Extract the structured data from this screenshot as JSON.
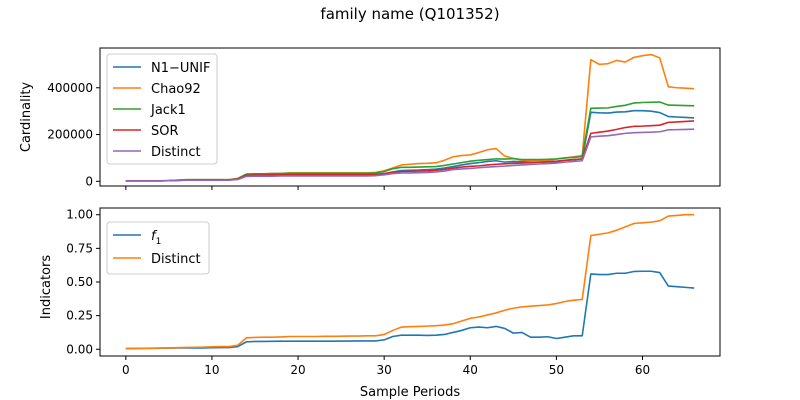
{
  "chart_data": {
    "title": "family name (Q101352)",
    "xlabel": "Sample Periods",
    "xlim": [
      -3,
      69
    ],
    "xticks": [
      0,
      10,
      20,
      30,
      40,
      50,
      60
    ],
    "subplots": [
      {
        "type": "line",
        "ylabel": "Cardinality",
        "ylim": [
          -20000,
          570000
        ],
        "yticks": [
          0,
          200000,
          400000
        ],
        "ytick_labels": [
          "0",
          "200000",
          "400000"
        ],
        "legend_placement": "upper left",
        "grid": false,
        "x": [
          0,
          1,
          2,
          3,
          4,
          5,
          6,
          7,
          8,
          9,
          10,
          11,
          12,
          13,
          14,
          15,
          16,
          17,
          18,
          19,
          20,
          21,
          22,
          23,
          24,
          25,
          26,
          27,
          28,
          29,
          30,
          31,
          32,
          33,
          34,
          35,
          36,
          37,
          38,
          39,
          40,
          41,
          42,
          43,
          44,
          45,
          46,
          47,
          48,
          49,
          50,
          51,
          52,
          53,
          54,
          55,
          56,
          57,
          58,
          59,
          60,
          61,
          62,
          63,
          64,
          65,
          66
        ],
        "series": [
          {
            "name": "N1−UNIF",
            "color": "#1f77b4",
            "values": [
              2000,
              2000,
              2000,
              2000,
              2000,
              3000,
              4000,
              6000,
              6000,
              6000,
              6000,
              6000,
              6000,
              10000,
              24000,
              25000,
              25000,
              26000,
              27000,
              28000,
              28000,
              28000,
              28000,
              28000,
              28000,
              28000,
              28000,
              28000,
              28000,
              29000,
              33000,
              40000,
              46000,
              47000,
              48000,
              50000,
              52000,
              57000,
              63000,
              70000,
              76000,
              80000,
              85000,
              88000,
              82000,
              85000,
              84000,
              82000,
              82000,
              83000,
              84000,
              90000,
              92000,
              96000,
              295000,
              293000,
              292000,
              296000,
              297000,
              302000,
              302000,
              300000,
              294000,
              277000,
              275000,
              273000,
              271000
            ]
          },
          {
            "name": "Chao92",
            "color": "#ff7f0e",
            "values": [
              2000,
              2000,
              2000,
              2000,
              2000,
              3000,
              5000,
              7000,
              7000,
              7000,
              7000,
              7000,
              7000,
              12000,
              30000,
              31000,
              32000,
              33000,
              34000,
              36000,
              36000,
              36000,
              36000,
              36000,
              36000,
              36000,
              36000,
              36000,
              36000,
              38000,
              45000,
              57000,
              70000,
              73000,
              76000,
              77000,
              79000,
              90000,
              105000,
              110000,
              113000,
              123000,
              135000,
              140000,
              108000,
              98000,
              90000,
              90000,
              90000,
              90000,
              95000,
              100000,
              105000,
              110000,
              520000,
              500000,
              503000,
              517000,
              510000,
              530000,
              537000,
              542000,
              528000,
              404000,
              400000,
              398000,
              396000
            ]
          },
          {
            "name": "Jack1",
            "color": "#2ca02c",
            "values": [
              2000,
              2000,
              2000,
              2000,
              2000,
              3000,
              5000,
              7000,
              7000,
              7000,
              7000,
              7000,
              7000,
              12000,
              31000,
              32000,
              32000,
              33000,
              34000,
              35000,
              35000,
              35000,
              35000,
              35000,
              35000,
              35000,
              35000,
              35000,
              35000,
              36000,
              42000,
              54000,
              60000,
              60000,
              61000,
              62000,
              63000,
              68000,
              74000,
              80000,
              86000,
              90000,
              93000,
              96000,
              95000,
              97000,
              93000,
              93000,
              93000,
              94000,
              96000,
              100000,
              102000,
              106000,
              312000,
              313000,
              314000,
              320000,
              325000,
              335000,
              337000,
              338000,
              339000,
              326000,
              325000,
              324000,
              323000
            ]
          },
          {
            "name": "SOR",
            "color": "#d62728",
            "values": [
              2000,
              2000,
              2000,
              2000,
              2000,
              3000,
              4000,
              6000,
              6000,
              6000,
              6000,
              6000,
              6000,
              10000,
              26000,
              27000,
              27000,
              28000,
              28000,
              29000,
              29000,
              29000,
              29000,
              29000,
              29000,
              29000,
              29000,
              29000,
              29000,
              30000,
              33000,
              38000,
              42000,
              43000,
              44000,
              45000,
              47000,
              51000,
              56000,
              61000,
              64000,
              66000,
              70000,
              73000,
              75000,
              77000,
              78000,
              80000,
              82000,
              84000,
              86000,
              90000,
              93000,
              96000,
              205000,
              210000,
              215000,
              222000,
              230000,
              235000,
              236000,
              238000,
              240000,
              252000,
              254000,
              256000,
              258000
            ]
          },
          {
            "name": "Distinct",
            "color": "#9467bd",
            "values": [
              1500,
              1500,
              1500,
              1500,
              1500,
              2500,
              3500,
              5000,
              5000,
              5000,
              5000,
              5000,
              5000,
              8000,
              21000,
              22000,
              22000,
              22000,
              23000,
              23000,
              23000,
              23000,
              23000,
              23000,
              23000,
              23000,
              23000,
              23000,
              23000,
              24000,
              28000,
              33000,
              36000,
              36000,
              37000,
              38000,
              40000,
              44000,
              50000,
              53000,
              55000,
              58000,
              61000,
              63000,
              65000,
              68000,
              70000,
              72000,
              74000,
              76000,
              78000,
              82000,
              85000,
              88000,
              190000,
              193000,
              195000,
              200000,
              205000,
              208000,
              209000,
              210000,
              212000,
              220000,
              221000,
              222000,
              223000
            ]
          }
        ]
      },
      {
        "type": "line",
        "ylabel": "Indicators",
        "ylim": [
          -0.05,
          1.05
        ],
        "yticks": [
          0.0,
          0.25,
          0.5,
          0.75,
          1.0
        ],
        "ytick_labels": [
          "0.00",
          "0.25",
          "0.50",
          "0.75",
          "1.00"
        ],
        "legend_placement": "upper left",
        "grid": false,
        "x": [
          0,
          1,
          2,
          3,
          4,
          5,
          6,
          7,
          8,
          9,
          10,
          11,
          12,
          13,
          14,
          15,
          16,
          17,
          18,
          19,
          20,
          21,
          22,
          23,
          24,
          25,
          26,
          27,
          28,
          29,
          30,
          31,
          32,
          33,
          34,
          35,
          36,
          37,
          38,
          39,
          40,
          41,
          42,
          43,
          44,
          45,
          46,
          47,
          48,
          49,
          50,
          51,
          52,
          53,
          54,
          55,
          56,
          57,
          58,
          59,
          60,
          61,
          62,
          63,
          64,
          65,
          66
        ],
        "series": [
          {
            "name": "f",
            "name_subscript": "1",
            "color": "#1f77b4",
            "values": [
              0.005,
              0.006,
              0.007,
              0.007,
              0.008,
              0.009,
              0.01,
              0.01,
              0.01,
              0.01,
              0.012,
              0.013,
              0.013,
              0.02,
              0.055,
              0.058,
              0.058,
              0.059,
              0.06,
              0.06,
              0.06,
              0.06,
              0.06,
              0.06,
              0.06,
              0.061,
              0.061,
              0.062,
              0.062,
              0.062,
              0.07,
              0.095,
              0.105,
              0.105,
              0.105,
              0.103,
              0.105,
              0.11,
              0.125,
              0.14,
              0.16,
              0.165,
              0.16,
              0.17,
              0.155,
              0.12,
              0.125,
              0.09,
              0.09,
              0.093,
              0.08,
              0.09,
              0.1,
              0.1,
              0.56,
              0.555,
              0.555,
              0.565,
              0.565,
              0.578,
              0.58,
              0.58,
              0.57,
              0.47,
              0.465,
              0.46,
              0.455
            ]
          },
          {
            "name": "Distinct",
            "color": "#ff7f0e",
            "values": [
              0.005,
              0.006,
              0.007,
              0.008,
              0.009,
              0.01,
              0.012,
              0.014,
              0.015,
              0.016,
              0.018,
              0.02,
              0.02,
              0.03,
              0.085,
              0.088,
              0.09,
              0.09,
              0.092,
              0.095,
              0.095,
              0.095,
              0.095,
              0.096,
              0.096,
              0.097,
              0.098,
              0.098,
              0.1,
              0.1,
              0.11,
              0.14,
              0.165,
              0.168,
              0.17,
              0.172,
              0.175,
              0.18,
              0.19,
              0.21,
              0.23,
              0.24,
              0.255,
              0.27,
              0.29,
              0.305,
              0.315,
              0.32,
              0.325,
              0.33,
              0.34,
              0.355,
              0.365,
              0.37,
              0.845,
              0.855,
              0.865,
              0.885,
              0.91,
              0.935,
              0.94,
              0.945,
              0.955,
              0.99,
              0.995,
              1.0,
              1.0
            ]
          }
        ]
      }
    ]
  }
}
